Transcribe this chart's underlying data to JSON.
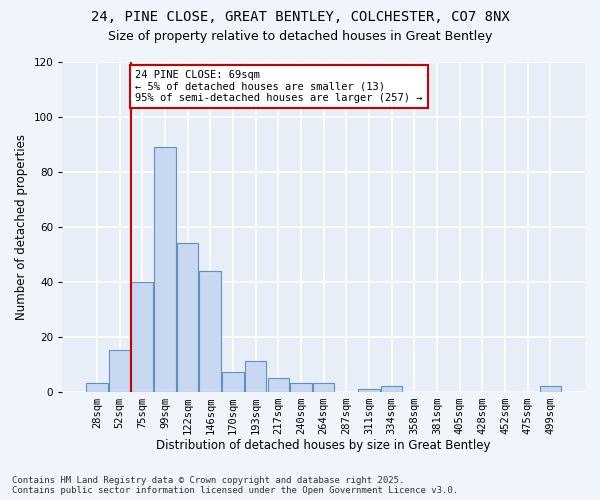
{
  "title": "24, PINE CLOSE, GREAT BENTLEY, COLCHESTER, CO7 8NX",
  "subtitle": "Size of property relative to detached houses in Great Bentley",
  "xlabel": "Distribution of detached houses by size in Great Bentley",
  "ylabel": "Number of detached properties",
  "bar_color": "#c8d8f0",
  "bar_edge_color": "#6090c0",
  "background_color": "#e8eef8",
  "fig_background_color": "#f0f4fb",
  "grid_color": "#ffffff",
  "bin_labels": [
    "28sqm",
    "52sqm",
    "75sqm",
    "99sqm",
    "122sqm",
    "146sqm",
    "170sqm",
    "193sqm",
    "217sqm",
    "240sqm",
    "264sqm",
    "287sqm",
    "311sqm",
    "334sqm",
    "358sqm",
    "381sqm",
    "405sqm",
    "428sqm",
    "452sqm",
    "475sqm",
    "499sqm"
  ],
  "bar_values": [
    3,
    15,
    40,
    89,
    54,
    44,
    7,
    11,
    5,
    3,
    3,
    0,
    1,
    2,
    0,
    0,
    0,
    0,
    0,
    0,
    2
  ],
  "ylim": [
    0,
    120
  ],
  "yticks": [
    0,
    20,
    40,
    60,
    80,
    100,
    120
  ],
  "vline_x": 1.5,
  "vline_color": "#cc0000",
  "annotation_title": "24 PINE CLOSE: 69sqm",
  "annotation_line1": "← 5% of detached houses are smaller (13)",
  "annotation_line2": "95% of semi-detached houses are larger (257) →",
  "annotation_box_color": "#cc0000",
  "footer_line1": "Contains HM Land Registry data © Crown copyright and database right 2025.",
  "footer_line2": "Contains public sector information licensed under the Open Government Licence v3.0.",
  "title_fontsize": 10,
  "subtitle_fontsize": 9,
  "axis_label_fontsize": 8.5,
  "tick_fontsize": 7.5,
  "annotation_fontsize": 7.5,
  "footer_fontsize": 6.5
}
